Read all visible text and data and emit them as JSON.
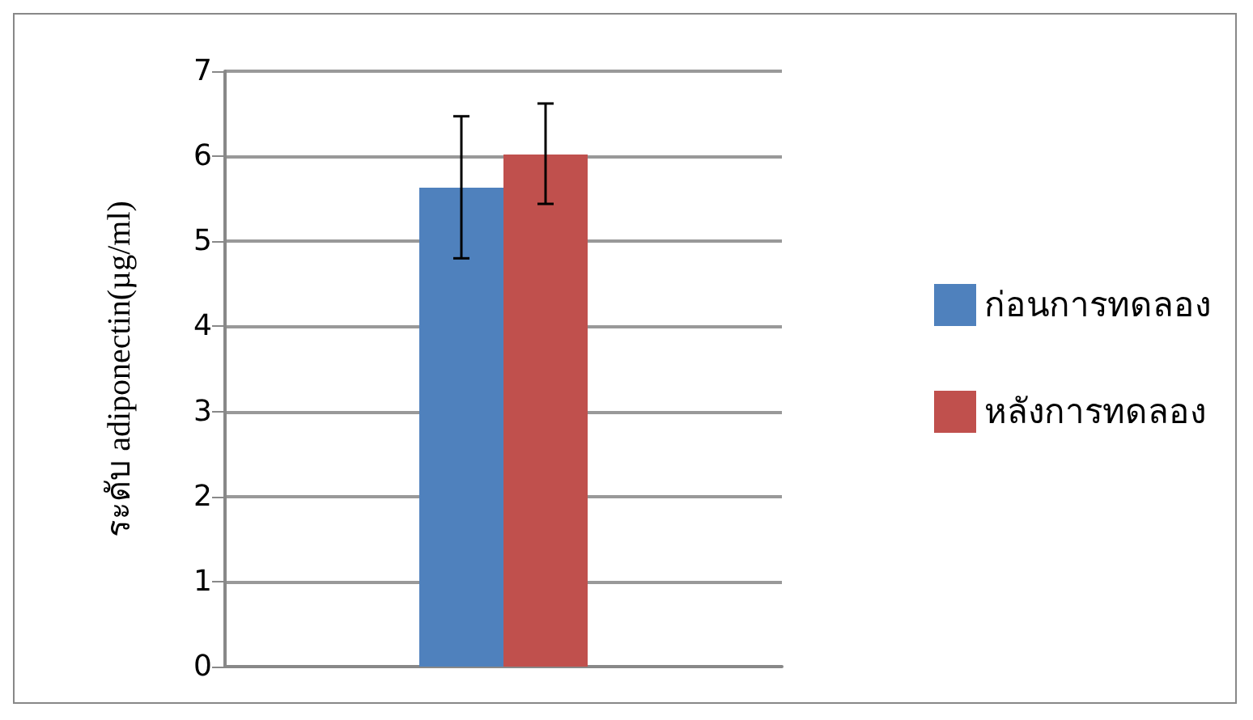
{
  "chart_data": {
    "type": "bar",
    "ylabel": "ระดับ adiponectin(µg/ml)",
    "categories": [
      null
    ],
    "series": [
      {
        "name": "ก่อนการทดลอง",
        "color": "#4f81bd",
        "values": [
          5.63
        ],
        "errors": [
          [
            4.8,
            6.47
          ]
        ]
      },
      {
        "name": "หลังการทดลอง",
        "color": "#c0504d",
        "values": [
          6.02
        ],
        "errors": [
          [
            5.44,
            6.62
          ]
        ]
      }
    ],
    "ylim": [
      0,
      7
    ],
    "yticks": [
      0,
      1,
      2,
      3,
      4,
      5,
      6,
      7
    ],
    "grid": "y",
    "legend": "right"
  }
}
